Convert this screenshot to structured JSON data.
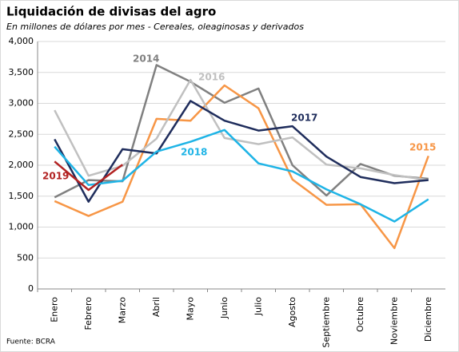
{
  "chart_data": {
    "type": "line",
    "title": "Liquidación de divisas del agro",
    "subtitle": "En millones de dólares por mes - Cereales, oleaginosas y derivados",
    "source": "Fuente: BCRA",
    "categories": [
      "Enero",
      "Febrero",
      "Marzo",
      "Abril",
      "Mayo",
      "Junio",
      "Julio",
      "Agosto",
      "Septiembre",
      "Octubre",
      "Noviembre",
      "Diciembre"
    ],
    "series": [
      {
        "name": "2014",
        "color": "#808080",
        "values": [
          1480,
          1760,
          1740,
          3620,
          3350,
          3010,
          3240,
          2000,
          1510,
          2020,
          1830,
          1780
        ]
      },
      {
        "name": "2015",
        "color": "#f79646",
        "values": [
          1420,
          1180,
          1410,
          2750,
          2720,
          3290,
          2920,
          1770,
          1360,
          1370,
          660,
          2150
        ]
      },
      {
        "name": "2016",
        "color": "#c0c0c0",
        "values": [
          2890,
          1830,
          1990,
          2430,
          3380,
          2440,
          2340,
          2450,
          2010,
          1950,
          1840,
          1760
        ]
      },
      {
        "name": "2017",
        "color": "#1f2d5c",
        "values": [
          2420,
          1410,
          2260,
          2190,
          3040,
          2720,
          2560,
          2630,
          2140,
          1810,
          1710,
          1760
        ]
      },
      {
        "name": "2018",
        "color": "#1fb4e6",
        "values": [
          2300,
          1680,
          1750,
          2220,
          2380,
          2570,
          2030,
          1900,
          1610,
          1370,
          1090,
          1450
        ]
      },
      {
        "name": "2019",
        "color": "#b22222",
        "values": [
          2060,
          1600,
          2010,
          null,
          null,
          null,
          null,
          null,
          null,
          null,
          null,
          null
        ]
      }
    ],
    "ylim": [
      0,
      4000
    ],
    "yticks": [
      0,
      500,
      {
        "value": 1000,
        "label": "1,000"
      },
      {
        "value": 1500,
        "label": "1,500"
      },
      {
        "value": 2000,
        "label": "2,000"
      },
      {
        "value": 2500,
        "label": "2,500"
      },
      {
        "value": 3000,
        "label": "3,000"
      },
      {
        "value": 3500,
        "label": "3,500"
      },
      {
        "value": 4000,
        "label": "4,000"
      }
    ],
    "grid": true
  }
}
